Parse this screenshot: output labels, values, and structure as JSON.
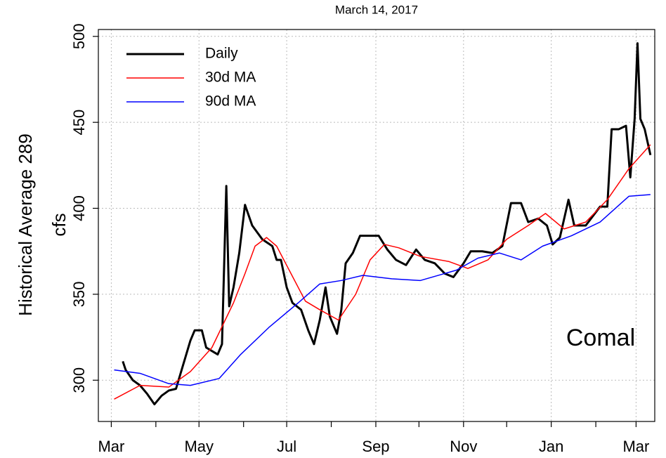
{
  "chart_data": {
    "type": "line",
    "title": "March 14, 2017",
    "ylabel": [
      "Historical Average 289",
      "cfs"
    ],
    "annotation": "Comal",
    "xlim": [
      -9,
      378
    ],
    "xticks": [
      {
        "value": 0,
        "label": "Mar"
      },
      {
        "value": 61,
        "label": "May"
      },
      {
        "value": 122,
        "label": "Jul"
      },
      {
        "value": 184,
        "label": "Sep"
      },
      {
        "value": 245,
        "label": "Nov"
      },
      {
        "value": 306,
        "label": "Jan"
      },
      {
        "value": 365,
        "label": "Mar"
      }
    ],
    "x_minor_ticks": [
      31,
      92,
      153,
      214,
      275,
      337
    ],
    "ylim": [
      276,
      504
    ],
    "yticks": [
      300,
      350,
      400,
      450,
      500
    ],
    "grid": true,
    "legend": "top-left",
    "series": [
      {
        "name": "Daily",
        "color": "#000000",
        "width": 3,
        "x": [
          8,
          10,
          15,
          20,
          25,
          30,
          35,
          40,
          45,
          50,
          55,
          58,
          63,
          66,
          70,
          74,
          77,
          80,
          82,
          85,
          89,
          93,
          98,
          105,
          112,
          115,
          118,
          122,
          126,
          132,
          137,
          141,
          145,
          149,
          152,
          157,
          160,
          163,
          168,
          173,
          180,
          186,
          192,
          198,
          205,
          212,
          218,
          225,
          232,
          238,
          245,
          250,
          258,
          265,
          272,
          278,
          285,
          290,
          297,
          303,
          307,
          312,
          318,
          322,
          330,
          340,
          345,
          348,
          353,
          358,
          361,
          364,
          366,
          368,
          371,
          375
        ],
        "values": [
          311,
          306,
          300,
          297,
          292,
          286,
          291,
          294,
          295,
          309,
          323,
          329,
          329,
          319,
          317,
          315,
          321,
          413,
          343,
          354,
          374,
          402,
          390,
          382,
          378,
          370,
          370,
          354,
          345,
          341,
          329,
          321,
          335,
          354,
          337,
          327,
          341,
          368,
          374,
          384,
          384,
          384,
          376,
          370,
          367,
          376,
          370,
          368,
          362,
          360,
          368,
          375,
          375,
          374,
          378,
          403,
          403,
          392,
          394,
          390,
          379,
          383,
          405,
          390,
          390,
          401,
          401,
          446,
          446,
          448,
          418,
          452,
          496,
          452,
          446,
          431
        ]
      },
      {
        "name": "30d MA",
        "color": "#ff0000",
        "width": 1.5,
        "x": [
          2,
          20,
          40,
          55,
          70,
          85,
          93,
          100,
          108,
          115,
          125,
          135,
          145,
          158,
          170,
          180,
          190,
          200,
          215,
          235,
          248,
          262,
          275,
          290,
          302,
          315,
          330,
          345,
          360,
          375
        ],
        "values": [
          289,
          297,
          296,
          305,
          319,
          345,
          362,
          378,
          383,
          378,
          362,
          346,
          341,
          335,
          350,
          370,
          379,
          377,
          372,
          369,
          365,
          370,
          382,
          390,
          397,
          388,
          392,
          405,
          423,
          437
        ]
      },
      {
        "name": "90d MA",
        "color": "#0000ff",
        "width": 1.5,
        "x": [
          2,
          20,
          40,
          55,
          75,
          90,
          110,
          130,
          145,
          160,
          175,
          195,
          215,
          240,
          255,
          270,
          285,
          300,
          320,
          340,
          360,
          375
        ],
        "values": [
          306,
          304,
          298,
          297,
          301,
          315,
          331,
          345,
          356,
          358,
          361,
          359,
          358,
          364,
          371,
          374,
          370,
          378,
          384,
          392,
          407,
          408
        ]
      }
    ]
  }
}
